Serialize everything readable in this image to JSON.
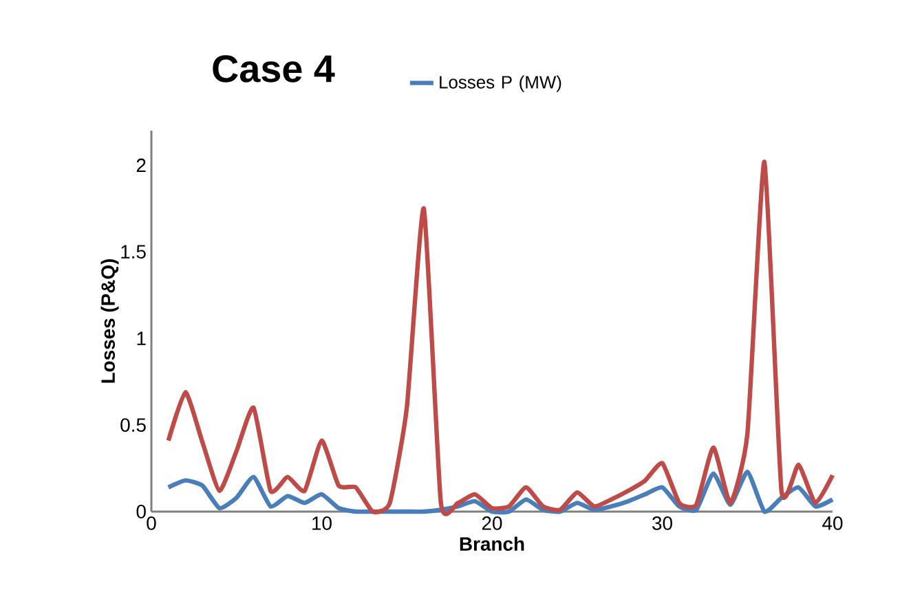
{
  "chart_data": {
    "type": "line",
    "title": "Case 4",
    "xlabel": "Branch",
    "ylabel": "Losses (P&Q)",
    "x": [
      1,
      2,
      3,
      4,
      5,
      6,
      7,
      8,
      9,
      10,
      11,
      12,
      13,
      14,
      15,
      16,
      17,
      18,
      19,
      20,
      21,
      22,
      23,
      24,
      25,
      26,
      27,
      28,
      29,
      30,
      31,
      32,
      33,
      34,
      35,
      36,
      37,
      38,
      39,
      40
    ],
    "series": [
      {
        "name": "Losses P (MW)",
        "color": "#4a7ebb",
        "values": [
          0.14,
          0.18,
          0.15,
          0.02,
          0.08,
          0.2,
          0.03,
          0.09,
          0.05,
          0.1,
          0.02,
          0.0,
          0.0,
          0.0,
          0.0,
          0.0,
          0.01,
          0.03,
          0.06,
          0.0,
          0.0,
          0.07,
          0.01,
          0.0,
          0.05,
          0.01,
          0.03,
          0.06,
          0.1,
          0.14,
          0.03,
          0.01,
          0.22,
          0.04,
          0.23,
          0.0,
          0.08,
          0.14,
          0.03,
          0.07
        ]
      },
      {
        "color": "#be4b48",
        "values": [
          0.41,
          0.69,
          0.4,
          0.12,
          0.35,
          0.6,
          0.12,
          0.2,
          0.12,
          0.41,
          0.15,
          0.14,
          0.0,
          0.05,
          0.6,
          1.75,
          0.05,
          0.05,
          0.1,
          0.02,
          0.03,
          0.14,
          0.03,
          0.01,
          0.11,
          0.03,
          0.07,
          0.12,
          0.18,
          0.28,
          0.05,
          0.04,
          0.37,
          0.05,
          0.45,
          2.02,
          0.12,
          0.27,
          0.05,
          0.21
        ]
      }
    ],
    "xlim": [
      0,
      40
    ],
    "ylim": [
      0,
      2.2
    ],
    "xticks": [
      0,
      10,
      20,
      30,
      40
    ],
    "yticks": [
      0,
      0.5,
      1,
      1.5,
      2
    ],
    "legend": "top"
  }
}
